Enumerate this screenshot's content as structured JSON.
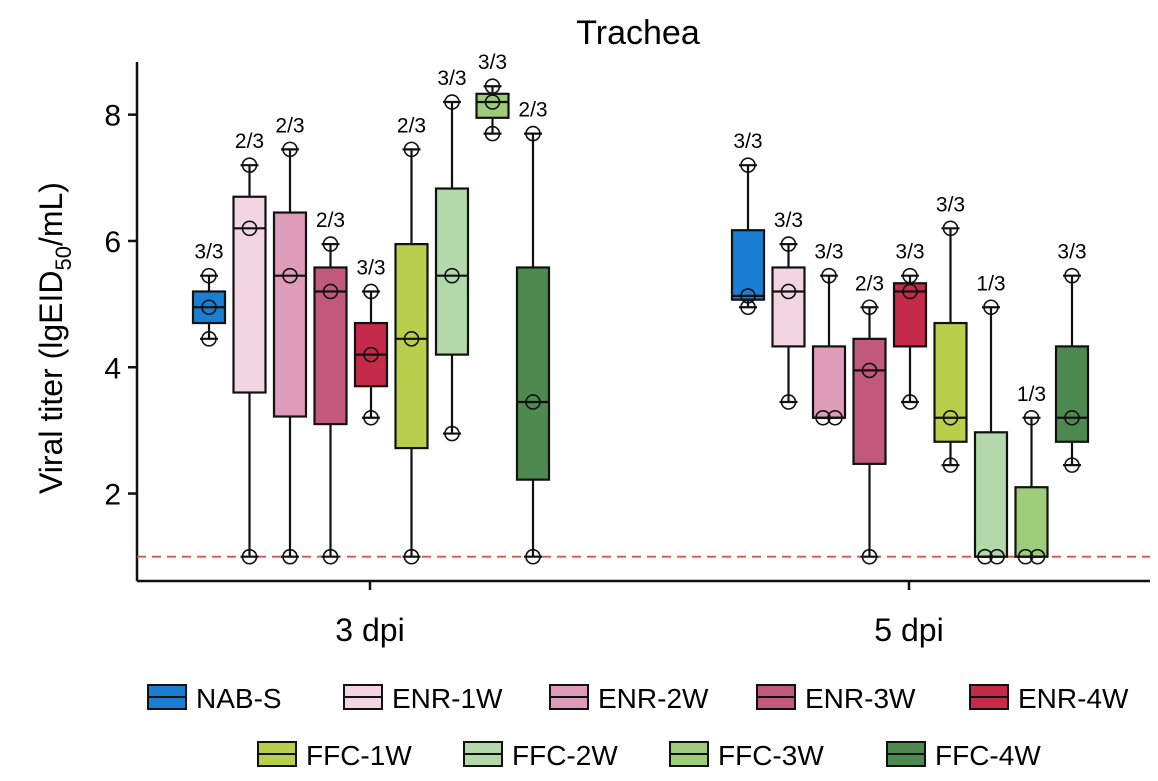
{
  "chart_data": {
    "type": "box",
    "title": "Trachea",
    "ylabel": {
      "prefix": "Viral titer (lgEID",
      "subscript": "50",
      "suffix": "/mL)"
    },
    "xlabel": "",
    "ylim": [
      0.6,
      8.8
    ],
    "yticks": [
      2,
      4,
      6,
      8
    ],
    "detection_limit": 1,
    "detection_line_color": "#d9534f",
    "categories": [
      "3 dpi",
      "5 dpi"
    ],
    "series": [
      {
        "name": "NAB-S",
        "color": "#1a7fd4"
      },
      {
        "name": "ENR-1W",
        "color": "#f3d4e2"
      },
      {
        "name": "ENR-2W",
        "color": "#de9cb8"
      },
      {
        "name": "ENR-3W",
        "color": "#c0597c"
      },
      {
        "name": "ENR-4W",
        "color": "#c52a49"
      },
      {
        "name": "FFC-1W",
        "color": "#b9ce4a"
      },
      {
        "name": "FFC-2W",
        "color": "#b3d8aa"
      },
      {
        "name": "FFC-3W",
        "color": "#9fcc7a"
      },
      {
        "name": "FFC-4W",
        "color": "#4e8a50"
      }
    ],
    "groups": [
      {
        "category": "3 dpi",
        "boxes": [
          {
            "series": "NAB-S",
            "min": 4.45,
            "q1": 4.7,
            "median": 4.95,
            "q3": 5.2,
            "max": 5.45,
            "points": [
              4.45,
              4.95,
              5.45
            ],
            "label": "3/3"
          },
          {
            "series": "ENR-1W",
            "min": 1.0,
            "q1": 3.6,
            "median": 6.2,
            "q3": 6.7,
            "max": 7.2,
            "points": [
              1.0,
              6.2,
              7.2
            ],
            "label": "2/3"
          },
          {
            "series": "ENR-2W",
            "min": 1.0,
            "q1": 3.22,
            "median": 5.45,
            "q3": 6.45,
            "max": 7.45,
            "points": [
              1.0,
              5.45,
              7.45
            ],
            "label": "2/3"
          },
          {
            "series": "ENR-3W",
            "min": 1.0,
            "q1": 3.1,
            "median": 5.2,
            "q3": 5.58,
            "max": 5.95,
            "points": [
              1.0,
              5.2,
              5.95
            ],
            "label": "2/3"
          },
          {
            "series": "ENR-4W",
            "min": 3.2,
            "q1": 3.7,
            "median": 4.2,
            "q3": 4.7,
            "max": 5.2,
            "points": [
              3.2,
              4.2,
              5.2
            ],
            "label": "3/3"
          },
          {
            "series": "FFC-1W",
            "min": 1.0,
            "q1": 2.72,
            "median": 4.45,
            "q3": 5.95,
            "max": 7.45,
            "points": [
              1.0,
              4.45,
              7.45
            ],
            "label": "2/3"
          },
          {
            "series": "FFC-2W",
            "min": 2.95,
            "q1": 4.2,
            "median": 5.45,
            "q3": 6.83,
            "max": 8.2,
            "points": [
              2.95,
              5.45,
              8.2
            ],
            "label": "3/3"
          },
          {
            "series": "FFC-3W",
            "min": 7.7,
            "q1": 7.95,
            "median": 8.2,
            "q3": 8.33,
            "max": 8.45,
            "points": [
              7.7,
              8.2,
              8.45
            ],
            "label": "3/3"
          },
          {
            "series": "FFC-4W",
            "min": 1.0,
            "q1": 2.22,
            "median": 3.45,
            "q3": 5.58,
            "max": 7.7,
            "points": [
              1.0,
              3.45,
              7.7
            ],
            "label": "2/3"
          }
        ]
      },
      {
        "category": "5 dpi",
        "boxes": [
          {
            "series": "NAB-S",
            "min": 4.95,
            "q1": 5.07,
            "median": 5.13,
            "q3": 6.17,
            "max": 7.2,
            "points": [
              4.95,
              5.13,
              7.2
            ],
            "label": "3/3"
          },
          {
            "series": "ENR-1W",
            "min": 3.45,
            "q1": 4.33,
            "median": 5.2,
            "q3": 5.58,
            "max": 5.95,
            "points": [
              3.45,
              5.2,
              5.95
            ],
            "label": "3/3"
          },
          {
            "series": "ENR-2W",
            "min": 3.2,
            "q1": 3.2,
            "median": 3.2,
            "q3": 4.33,
            "max": 5.45,
            "points": [
              3.2,
              3.2,
              5.45
            ],
            "label": "3/3"
          },
          {
            "series": "ENR-3W",
            "min": 1.0,
            "q1": 2.47,
            "median": 3.95,
            "q3": 4.45,
            "max": 4.95,
            "points": [
              1.0,
              3.95,
              4.95
            ],
            "label": "2/3"
          },
          {
            "series": "ENR-4W",
            "min": 3.45,
            "q1": 4.33,
            "median": 5.2,
            "q3": 5.33,
            "max": 5.45,
            "points": [
              3.45,
              5.2,
              5.45
            ],
            "label": "3/3"
          },
          {
            "series": "FFC-1W",
            "min": 2.45,
            "q1": 2.82,
            "median": 3.2,
            "q3": 4.7,
            "max": 6.2,
            "points": [
              2.45,
              3.2,
              6.2
            ],
            "label": "3/3"
          },
          {
            "series": "FFC-2W",
            "min": 1.0,
            "q1": 1.0,
            "median": 1.0,
            "q3": 2.97,
            "max": 4.95,
            "points": [
              1.0,
              1.0,
              4.95
            ],
            "label": "1/3"
          },
          {
            "series": "FFC-3W",
            "min": 1.0,
            "q1": 1.0,
            "median": 1.0,
            "q3": 2.1,
            "max": 3.2,
            "points": [
              1.0,
              1.0,
              3.2
            ],
            "label": "1/3"
          },
          {
            "series": "FFC-4W",
            "min": 2.45,
            "q1": 2.82,
            "median": 3.2,
            "q3": 4.33,
            "max": 5.45,
            "points": [
              2.45,
              3.2,
              5.45
            ],
            "label": "3/3"
          }
        ]
      }
    ]
  }
}
